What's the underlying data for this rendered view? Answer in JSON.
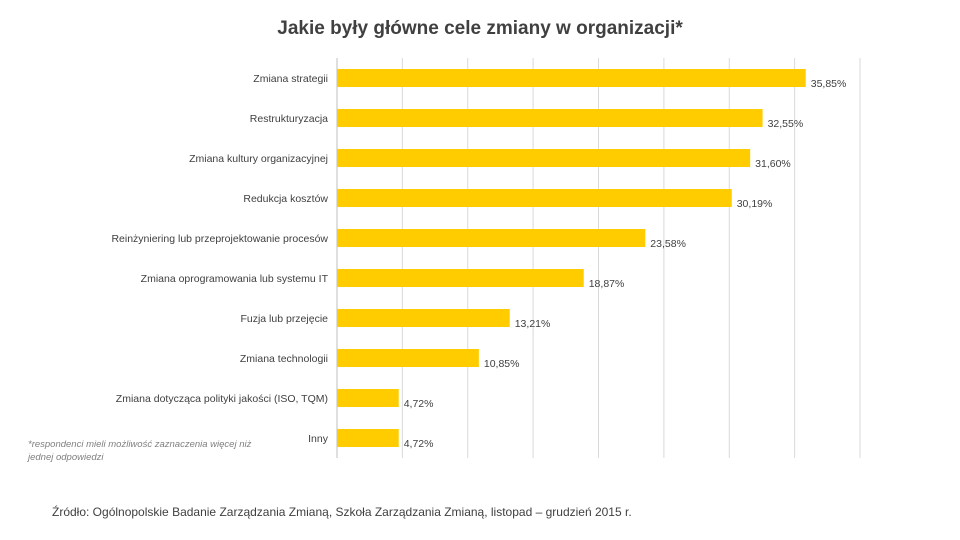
{
  "chart_data": {
    "type": "bar",
    "orientation": "horizontal",
    "title": "Jakie były główne cele zmiany w organizacji*",
    "categories": [
      "Zmiana strategii",
      "Restrukturyzacja",
      "Zmiana kultury organizacyjnej",
      "Redukcja kosztów",
      "Reinżyniering lub przeprojektowanie procesów",
      "Zmiana oprogramowania lub systemu IT",
      "Fuzja lub przejęcie",
      "Zmiana technologii",
      "Zmiana dotycząca polityki jakości (ISO, TQM)",
      "Inny"
    ],
    "values": [
      35.85,
      32.55,
      31.6,
      30.19,
      23.58,
      18.87,
      13.21,
      10.85,
      4.72,
      4.72
    ],
    "value_labels": [
      "35,85%",
      "32,55%",
      "31,60%",
      "30,19%",
      "23,58%",
      "18,87%",
      "13,21%",
      "10,85%",
      "4,72%",
      "4,72%"
    ],
    "xlim": [
      0,
      40
    ],
    "gridlines": true,
    "bar_color": "#FFCC00",
    "grid_color": "#d9d9d9"
  },
  "footnote": "*respondenci mieli możliwość zaznaczenia więcej niż jednej odpowiedzi",
  "source": "Źródło: Ogólnopolskie Badanie Zarządzania Zmianą, Szkoła Zarządzania Zmianą, listopad – grudzień 2015 r."
}
